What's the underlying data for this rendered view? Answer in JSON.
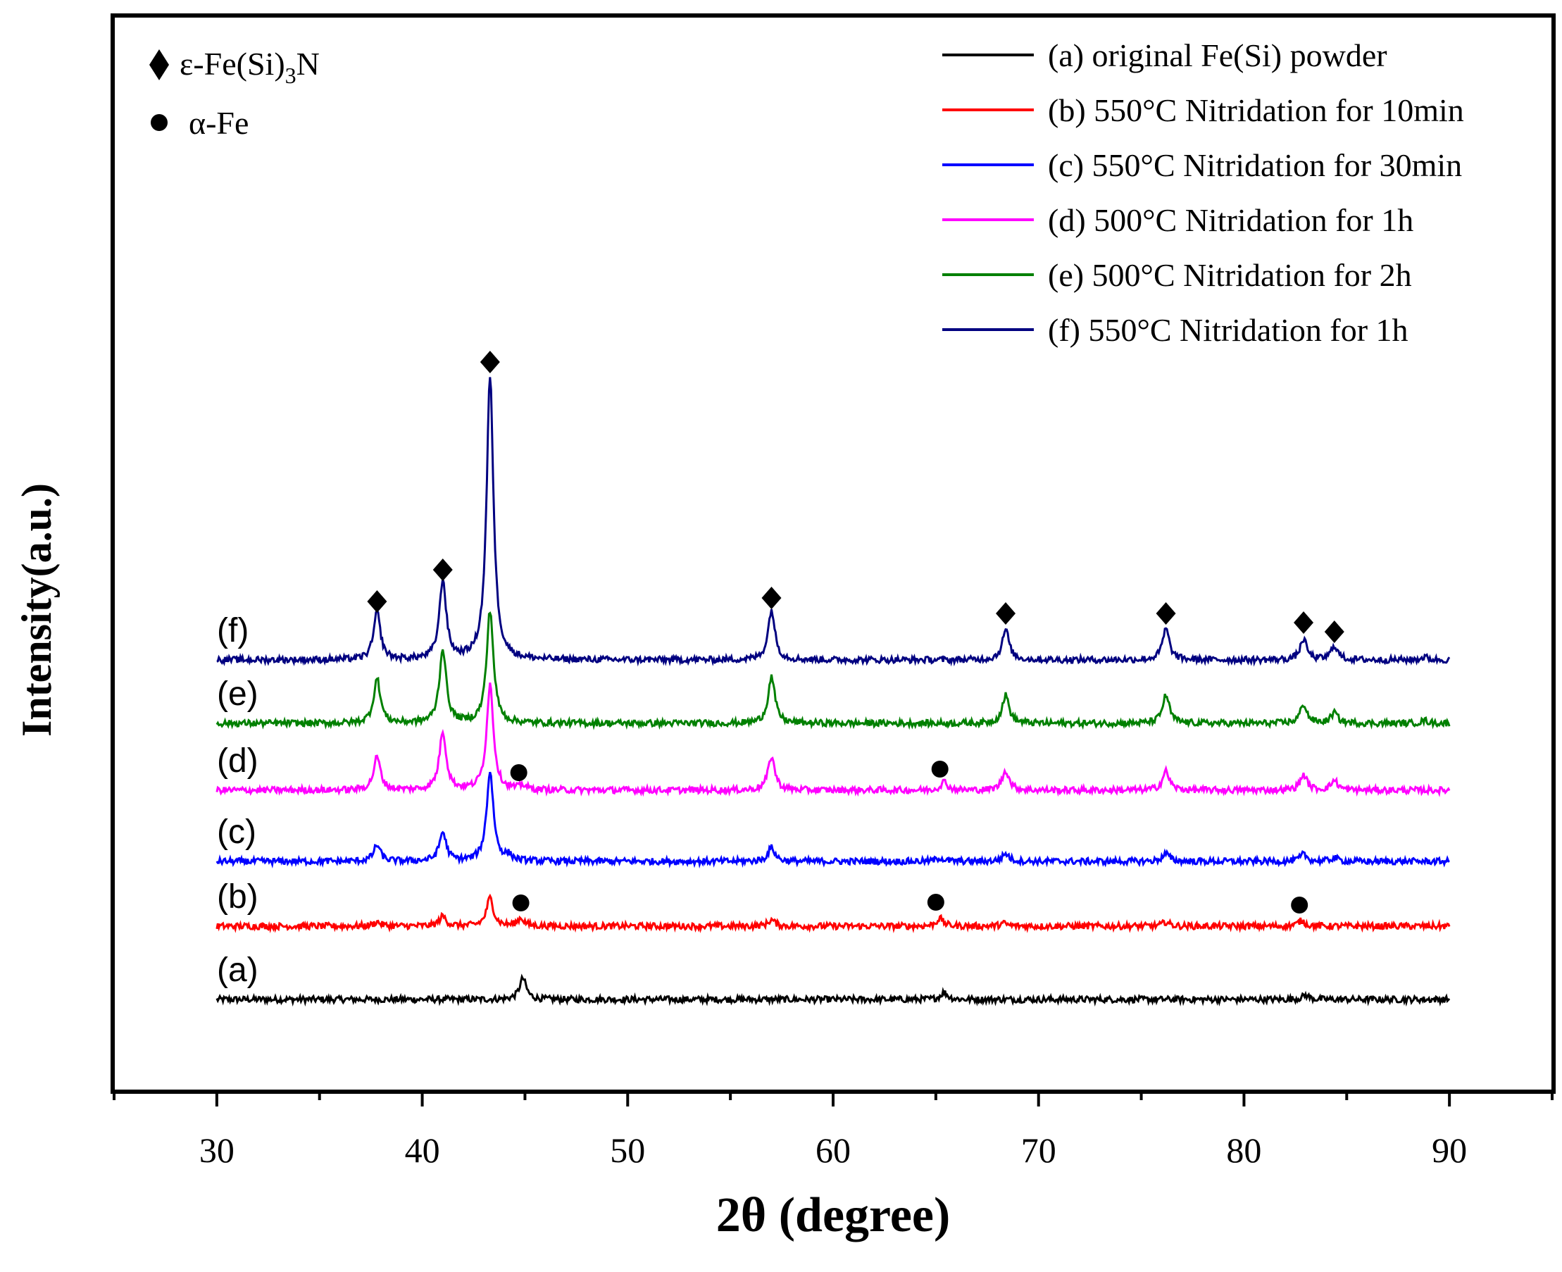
{
  "chart_data": {
    "type": "line",
    "title": "",
    "xlabel": "2θ (degree)",
    "ylabel": "Intensity(a.u.)",
    "xlim": [
      25,
      95
    ],
    "x_ticks": [
      "30",
      "40",
      "50",
      "60",
      "70",
      "80",
      "90"
    ],
    "x_tick_values": [
      30,
      40,
      50,
      60,
      70,
      80,
      90
    ],
    "yticks_shown": false,
    "legend_position": "top-right",
    "series": [
      {
        "id": "a",
        "label": "(a)",
        "name": "(a) original Fe(Si) powder",
        "color": "#000000",
        "baseline": 0,
        "peaks": [
          [
            44.9,
            30
          ],
          [
            65.4,
            10
          ],
          [
            83.0,
            6
          ]
        ]
      },
      {
        "id": "b",
        "label": "(b)",
        "name": "(b) 550°C Nitridation for 10min",
        "color": "#ff0000",
        "baseline": 104,
        "peaks": [
          [
            37.8,
            6
          ],
          [
            41.0,
            14
          ],
          [
            43.3,
            40
          ],
          [
            44.8,
            11
          ],
          [
            57.0,
            9
          ],
          [
            65.2,
            11
          ],
          [
            68.3,
            4
          ],
          [
            76.2,
            6
          ],
          [
            82.8,
            8
          ]
        ]
      },
      {
        "id": "c",
        "label": "(c)",
        "name": "(c) 550°C Nitridation for 30min",
        "color": "#0000ff",
        "baseline": 196,
        "peaks": [
          [
            37.8,
            23
          ],
          [
            41.0,
            41
          ],
          [
            43.3,
            127
          ],
          [
            44.2,
            7
          ],
          [
            57.0,
            20
          ],
          [
            65.2,
            5
          ],
          [
            68.4,
            11
          ],
          [
            76.2,
            11
          ],
          [
            82.9,
            10
          ],
          [
            84.4,
            5
          ]
        ]
      },
      {
        "id": "d",
        "label": "(d)",
        "name": "(d) 500°C Nitridation for 1h",
        "color": "#ff00ff",
        "baseline": 297,
        "peaks": [
          [
            37.8,
            47
          ],
          [
            41.0,
            83
          ],
          [
            43.3,
            150
          ],
          [
            44.9,
            6
          ],
          [
            57.0,
            48
          ],
          [
            65.4,
            12
          ],
          [
            68.4,
            28
          ],
          [
            76.2,
            27
          ],
          [
            82.9,
            22
          ],
          [
            84.4,
            14
          ]
        ]
      },
      {
        "id": "e",
        "label": "(e)",
        "name": "(e) 500°C Nitridation for 2h",
        "color": "#008000",
        "baseline": 392,
        "peaks": [
          [
            37.8,
            63
          ],
          [
            41.0,
            105
          ],
          [
            43.3,
            160
          ],
          [
            57.0,
            66
          ],
          [
            68.4,
            40
          ],
          [
            76.2,
            40
          ],
          [
            82.9,
            27
          ],
          [
            84.4,
            15
          ],
          [
            88.8,
            4
          ]
        ]
      },
      {
        "id": "f",
        "label": "(f)",
        "name": "(f) 550°C Nitridation for 1h",
        "color": "#000080",
        "baseline": 482,
        "peaks": [
          [
            37.8,
            67
          ],
          [
            41.0,
            112
          ],
          [
            43.3,
            402
          ],
          [
            57.0,
            71
          ],
          [
            68.4,
            43
          ],
          [
            76.2,
            44
          ],
          [
            82.9,
            29
          ],
          [
            84.4,
            20
          ],
          [
            88.8,
            4
          ]
        ]
      }
    ],
    "phase_legend": [
      {
        "symbol": "diamond",
        "label_prefix": "ε-Fe(Si)",
        "label_sub": "3",
        "label_suffix": "N"
      },
      {
        "symbol": "circle",
        "label": "α-Fe"
      }
    ],
    "annotations": [
      {
        "symbol": "diamond",
        "x": 37.8,
        "y": 565
      },
      {
        "symbol": "diamond",
        "x": 41.0,
        "y": 610
      },
      {
        "symbol": "diamond",
        "x": 43.3,
        "y": 905
      },
      {
        "symbol": "diamond",
        "x": 57.0,
        "y": 570
      },
      {
        "symbol": "diamond",
        "x": 68.4,
        "y": 548
      },
      {
        "symbol": "diamond",
        "x": 76.2,
        "y": 548
      },
      {
        "symbol": "diamond",
        "x": 82.9,
        "y": 535
      },
      {
        "symbol": "diamond",
        "x": 84.4,
        "y": 522
      },
      {
        "symbol": "circle",
        "x": 44.7,
        "y": 322
      },
      {
        "symbol": "circle",
        "x": 65.2,
        "y": 327
      },
      {
        "symbol": "circle",
        "x": 44.8,
        "y": 137
      },
      {
        "symbol": "circle",
        "x": 65.0,
        "y": 138
      },
      {
        "symbol": "circle",
        "x": 82.7,
        "y": 134
      }
    ]
  }
}
